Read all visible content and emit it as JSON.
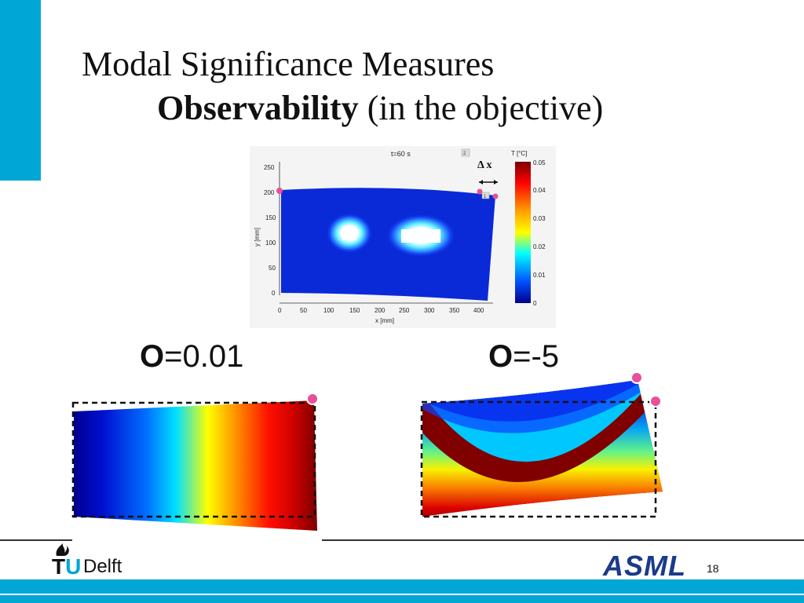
{
  "slide": {
    "title_line1": "Modal Significance Measures",
    "title_line2_bold": "Observability",
    "title_line2_rest": " (in the objective)",
    "page_number": "18"
  },
  "top_figure": {
    "time_label": "t=60 s",
    "panel_tag_2": "2",
    "panel_tag_1": "1",
    "delta_label": "Δ x",
    "xlabel": "x [mm]",
    "ylabel": "y [mm]",
    "x_ticks": [
      "0",
      "50",
      "100",
      "150",
      "200",
      "250",
      "300",
      "350",
      "400"
    ],
    "y_ticks": [
      "250",
      "200",
      "150",
      "100",
      "50",
      "0"
    ],
    "colorbar_title": "T [°C]",
    "colorbar_ticks": [
      "0.05",
      "0.04",
      "0.03",
      "0.02",
      "0.01",
      "0"
    ]
  },
  "measure_left": {
    "symbol": "O",
    "value": "=0.01"
  },
  "measure_right": {
    "symbol": "O",
    "value": "=-5"
  },
  "logos": {
    "tu": "TU",
    "tu_u": "U",
    "delft": "Delft",
    "asml": "ASML"
  },
  "colors": {
    "accent": "#00a6d6",
    "marker": "#e8509a",
    "asml_blue": "#1a3a8c"
  }
}
